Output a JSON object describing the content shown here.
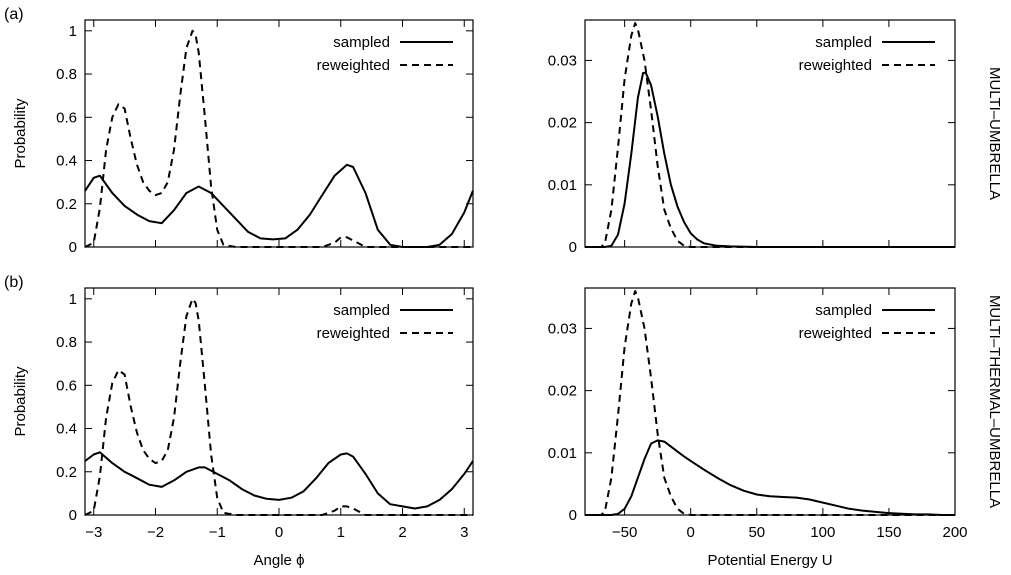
{
  "chart_data": [
    {
      "type": "line",
      "panel_tag": "(a)",
      "row_label": "MULTI–UMBRELLA",
      "xlabel": "",
      "ylabel": "Probability",
      "xlim": [
        -3.14159,
        3.14159
      ],
      "ylim": [
        0,
        1.05
      ],
      "xticks": [
        -3,
        -2,
        -1,
        0,
        1,
        2,
        3
      ],
      "yticks": [
        0,
        0.2,
        0.4,
        0.6,
        0.8,
        1
      ],
      "ytick_labels": [
        "0",
        "0.2",
        "0.4",
        "0.6",
        "0.8",
        "1"
      ],
      "grid": false,
      "legend": "top-right",
      "series": [
        {
          "name": "sampled",
          "style": "solid",
          "x": [
            -3.14,
            -3.0,
            -2.9,
            -2.7,
            -2.5,
            -2.3,
            -2.1,
            -1.9,
            -1.7,
            -1.5,
            -1.3,
            -1.1,
            -0.9,
            -0.7,
            -0.5,
            -0.3,
            -0.1,
            0.1,
            0.3,
            0.5,
            0.7,
            0.9,
            1.1,
            1.2,
            1.4,
            1.6,
            1.8,
            2.0,
            2.2,
            2.4,
            2.6,
            2.8,
            3.0,
            3.14
          ],
          "y": [
            0.26,
            0.32,
            0.33,
            0.25,
            0.19,
            0.15,
            0.12,
            0.11,
            0.17,
            0.25,
            0.28,
            0.25,
            0.19,
            0.13,
            0.07,
            0.04,
            0.035,
            0.04,
            0.08,
            0.15,
            0.24,
            0.33,
            0.38,
            0.37,
            0.25,
            0.08,
            0.01,
            0.0,
            0.0,
            0.0,
            0.01,
            0.06,
            0.16,
            0.26
          ]
        },
        {
          "name": "reweighted",
          "style": "dashed",
          "x": [
            -3.14,
            -3.0,
            -2.9,
            -2.8,
            -2.7,
            -2.6,
            -2.5,
            -2.4,
            -2.3,
            -2.2,
            -2.1,
            -2.0,
            -1.9,
            -1.8,
            -1.7,
            -1.6,
            -1.5,
            -1.4,
            -1.35,
            -1.3,
            -1.2,
            -1.1,
            -1.0,
            -0.9,
            -0.7,
            0.0,
            0.7,
            0.9,
            1.0,
            1.1,
            1.2,
            1.4,
            2.0,
            3.14
          ],
          "y": [
            0.0,
            0.02,
            0.18,
            0.45,
            0.6,
            0.66,
            0.64,
            0.5,
            0.38,
            0.3,
            0.26,
            0.24,
            0.25,
            0.3,
            0.45,
            0.7,
            0.92,
            1.0,
            0.98,
            0.9,
            0.6,
            0.28,
            0.08,
            0.01,
            0.0,
            0.0,
            0.0,
            0.02,
            0.045,
            0.045,
            0.03,
            0.0,
            0.0,
            0.0
          ]
        }
      ]
    },
    {
      "type": "line",
      "row_label": "MULTI–UMBRELLA",
      "xlabel": "",
      "ylabel": "",
      "xlim": [
        -80,
        200
      ],
      "ylim": [
        0,
        0.0365
      ],
      "xticks": [
        -50,
        0,
        50,
        100,
        150,
        200
      ],
      "yticks": [
        0,
        0.01,
        0.02,
        0.03
      ],
      "ytick_labels": [
        "0",
        "0.01",
        "0.02",
        "0.03"
      ],
      "grid": false,
      "legend": "top-right",
      "series": [
        {
          "name": "sampled",
          "style": "solid",
          "x": [
            -80,
            -65,
            -60,
            -55,
            -50,
            -45,
            -40,
            -36,
            -34,
            -30,
            -25,
            -20,
            -15,
            -10,
            -5,
            0,
            5,
            10,
            20,
            30,
            50,
            100,
            150,
            200
          ],
          "y": [
            0,
            0,
            0.0002,
            0.002,
            0.007,
            0.015,
            0.024,
            0.028,
            0.028,
            0.026,
            0.021,
            0.015,
            0.01,
            0.0065,
            0.004,
            0.0022,
            0.0012,
            0.0006,
            0.0002,
            0.0001,
            0,
            0,
            0,
            0
          ]
        },
        {
          "name": "reweighted",
          "style": "dashed",
          "x": [
            -80,
            -68,
            -65,
            -60,
            -55,
            -50,
            -45,
            -42,
            -40,
            -35,
            -30,
            -25,
            -20,
            -15,
            -10,
            -5,
            0,
            10,
            50,
            200
          ],
          "y": [
            0,
            0,
            0.0005,
            0.006,
            0.016,
            0.027,
            0.034,
            0.036,
            0.035,
            0.03,
            0.022,
            0.013,
            0.006,
            0.003,
            0.001,
            0.0002,
            0,
            0,
            0,
            0
          ]
        }
      ]
    },
    {
      "type": "line",
      "panel_tag": "(b)",
      "row_label": "MULTI–THERMAL–UMBRELLA",
      "xlabel": "Angle ϕ",
      "ylabel": "Probability",
      "xlim": [
        -3.14159,
        3.14159
      ],
      "ylim": [
        0,
        1.05
      ],
      "xticks": [
        -3,
        -2,
        -1,
        0,
        1,
        2,
        3
      ],
      "yticks": [
        0,
        0.2,
        0.4,
        0.6,
        0.8,
        1
      ],
      "ytick_labels": [
        "0",
        "0.2",
        "0.4",
        "0.6",
        "0.8",
        "1"
      ],
      "grid": false,
      "legend": "top-right",
      "series": [
        {
          "name": "sampled",
          "style": "solid",
          "x": [
            -3.14,
            -3.0,
            -2.9,
            -2.7,
            -2.5,
            -2.3,
            -2.1,
            -1.9,
            -1.7,
            -1.5,
            -1.3,
            -1.2,
            -1.0,
            -0.8,
            -0.6,
            -0.4,
            -0.2,
            0.0,
            0.2,
            0.4,
            0.6,
            0.8,
            1.0,
            1.1,
            1.2,
            1.4,
            1.6,
            1.8,
            2.0,
            2.2,
            2.4,
            2.6,
            2.8,
            3.0,
            3.14
          ],
          "y": [
            0.25,
            0.28,
            0.29,
            0.24,
            0.2,
            0.17,
            0.14,
            0.13,
            0.16,
            0.2,
            0.22,
            0.22,
            0.19,
            0.16,
            0.12,
            0.09,
            0.075,
            0.07,
            0.08,
            0.11,
            0.17,
            0.24,
            0.28,
            0.285,
            0.27,
            0.19,
            0.1,
            0.05,
            0.04,
            0.03,
            0.04,
            0.07,
            0.12,
            0.19,
            0.25
          ]
        },
        {
          "name": "reweighted",
          "style": "dashed",
          "x": [
            -3.14,
            -3.0,
            -2.9,
            -2.8,
            -2.7,
            -2.6,
            -2.5,
            -2.4,
            -2.3,
            -2.2,
            -2.1,
            -2.0,
            -1.9,
            -1.8,
            -1.7,
            -1.6,
            -1.5,
            -1.4,
            -1.35,
            -1.3,
            -1.2,
            -1.1,
            -1.0,
            -0.9,
            -0.7,
            0.0,
            0.7,
            0.9,
            1.0,
            1.1,
            1.2,
            1.4,
            2.0,
            3.14
          ],
          "y": [
            0.0,
            0.02,
            0.18,
            0.45,
            0.61,
            0.67,
            0.65,
            0.5,
            0.38,
            0.3,
            0.26,
            0.24,
            0.25,
            0.3,
            0.45,
            0.7,
            0.92,
            1.0,
            0.98,
            0.9,
            0.6,
            0.28,
            0.08,
            0.01,
            0.0,
            0.0,
            0.0,
            0.02,
            0.04,
            0.04,
            0.03,
            0.0,
            0.0,
            0.0
          ]
        }
      ]
    },
    {
      "type": "line",
      "row_label": "MULTI–THERMAL–UMBRELLA",
      "xlabel": "Potential Energy U",
      "ylabel": "",
      "xlim": [
        -80,
        200
      ],
      "ylim": [
        0,
        0.0365
      ],
      "xticks": [
        -50,
        0,
        50,
        100,
        150,
        200
      ],
      "yticks": [
        0,
        0.01,
        0.02,
        0.03
      ],
      "ytick_labels": [
        "0",
        "0.01",
        "0.02",
        "0.03"
      ],
      "grid": false,
      "legend": "top-right",
      "series": [
        {
          "name": "sampled",
          "style": "solid",
          "x": [
            -80,
            -60,
            -55,
            -50,
            -45,
            -40,
            -35,
            -30,
            -25,
            -20,
            -15,
            -10,
            -5,
            0,
            10,
            20,
            30,
            40,
            50,
            60,
            70,
            80,
            90,
            100,
            110,
            120,
            130,
            140,
            150,
            160,
            170,
            180,
            190,
            200
          ],
          "y": [
            0,
            0,
            0.0002,
            0.001,
            0.003,
            0.006,
            0.009,
            0.0115,
            0.012,
            0.0118,
            0.011,
            0.0102,
            0.0094,
            0.0087,
            0.0073,
            0.006,
            0.0048,
            0.0039,
            0.0033,
            0.003,
            0.0029,
            0.0028,
            0.0025,
            0.002,
            0.0015,
            0.001,
            0.0007,
            0.0005,
            0.0003,
            0.0002,
            0.0001,
            0.0001,
            0,
            0
          ]
        },
        {
          "name": "reweighted",
          "style": "dashed",
          "x": [
            -80,
            -68,
            -65,
            -60,
            -55,
            -50,
            -45,
            -42,
            -40,
            -35,
            -30,
            -25,
            -20,
            -15,
            -10,
            -5,
            0,
            10,
            50,
            200
          ],
          "y": [
            0,
            0,
            0.0005,
            0.006,
            0.016,
            0.027,
            0.034,
            0.036,
            0.035,
            0.03,
            0.022,
            0.013,
            0.006,
            0.003,
            0.001,
            0.0002,
            0,
            0,
            0,
            0
          ]
        }
      ]
    }
  ]
}
